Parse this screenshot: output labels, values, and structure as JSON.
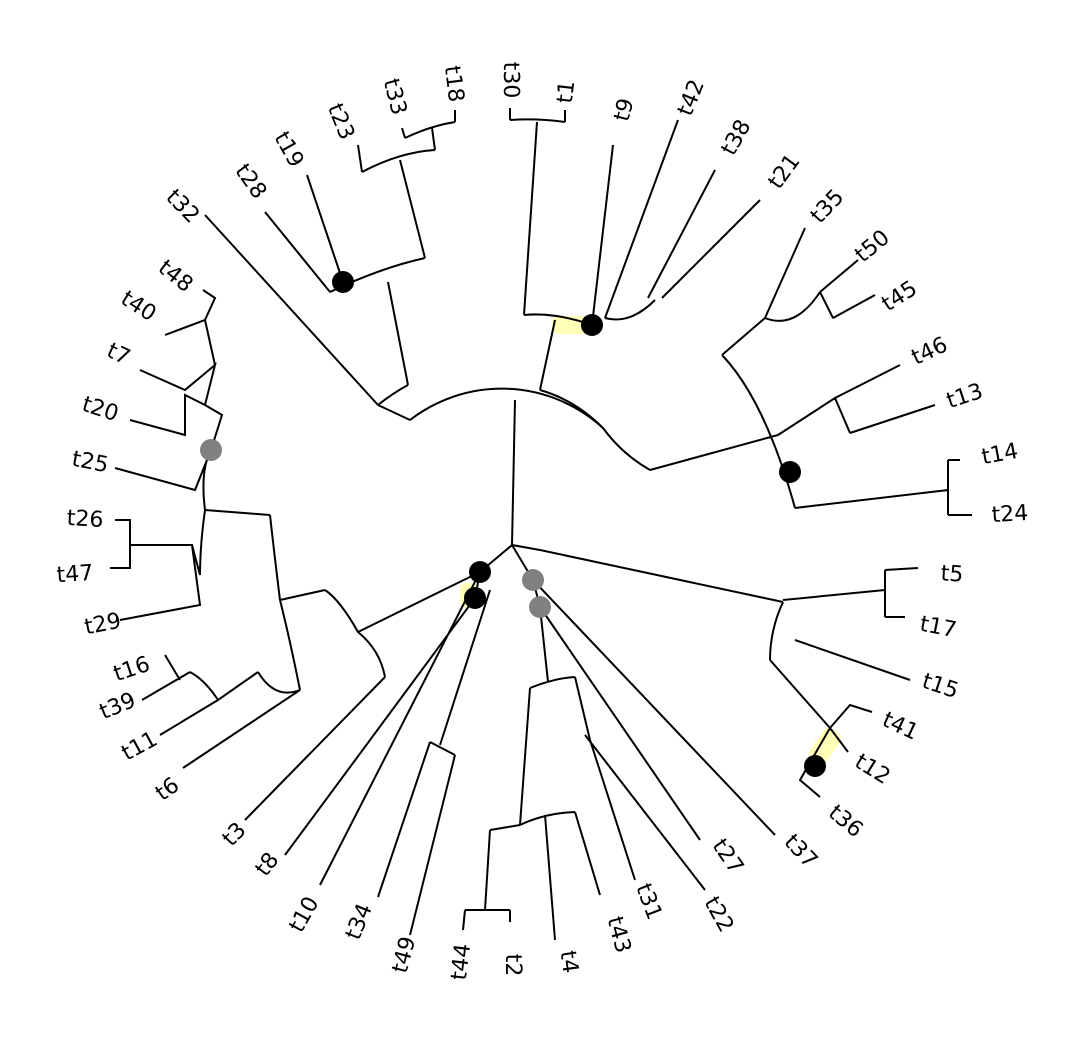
{
  "tree": {
    "leaves": [
      "t30",
      "t1",
      "t9",
      "t42",
      "t38",
      "t21",
      "t35",
      "t50",
      "t45",
      "t46",
      "t13",
      "t14",
      "t24",
      "t5",
      "t17",
      "t15",
      "t41",
      "t12",
      "t36",
      "t37",
      "t27",
      "t22",
      "t31",
      "t43",
      "t4",
      "t2",
      "t44",
      "t49",
      "t34",
      "t10",
      "t8",
      "t3",
      "t6",
      "t11",
      "t39",
      "t16",
      "t29",
      "t47",
      "t26",
      "t25",
      "t20",
      "t7",
      "t40",
      "t48",
      "t32",
      "t28",
      "t19",
      "t23",
      "t33",
      "t18"
    ]
  }
}
